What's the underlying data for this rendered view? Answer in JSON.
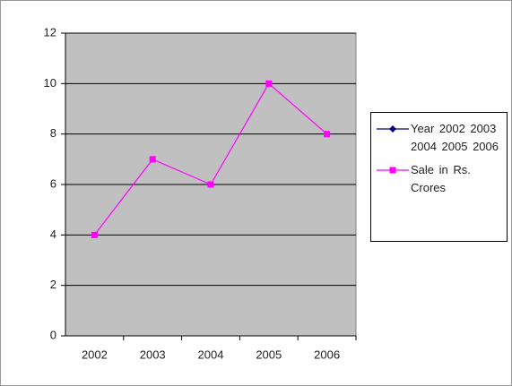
{
  "chart_data": {
    "type": "line",
    "categories": [
      "2002",
      "2003",
      "2004",
      "2005",
      "2006"
    ],
    "series": [
      {
        "name": "Year  2002 2003 2004 2005 2006",
        "color": "#000080",
        "marker": "diamond",
        "values": [
          null,
          null,
          null,
          null,
          null
        ]
      },
      {
        "name": "Sale in Rs. Crores",
        "color": "#ff00ff",
        "marker": "square",
        "values": [
          4,
          7,
          6,
          10,
          8
        ]
      }
    ],
    "ylim": [
      0,
      12
    ],
    "yticks": [
      0,
      2,
      4,
      6,
      8,
      10,
      12
    ],
    "grid": true,
    "legend": "right"
  }
}
